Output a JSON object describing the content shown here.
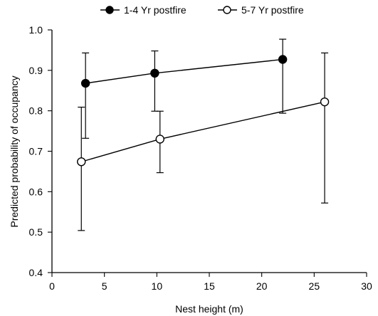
{
  "chart_data": {
    "type": "line",
    "title": "",
    "xlabel": "Nest height (m)",
    "ylabel": "Predicted probability of occupancy",
    "xlim": [
      0,
      30
    ],
    "ylim": [
      0.4,
      1.0
    ],
    "x_ticks": [
      0,
      5,
      10,
      15,
      20,
      25,
      30
    ],
    "y_ticks": [
      0.4,
      0.5,
      0.6,
      0.7,
      0.8,
      0.9,
      1.0
    ],
    "x_tick_labels": [
      "0",
      "5",
      "10",
      "15",
      "20",
      "25",
      "30"
    ],
    "y_tick_labels": [
      "0.4",
      "0.5",
      "0.6",
      "0.7",
      "0.8",
      "0.9",
      "1.0"
    ],
    "grid": false,
    "legend_position": "top-center",
    "series": [
      {
        "name": "1-4 Yr postfire",
        "marker": "filled-circle",
        "color": "#000000",
        "x": [
          3.2,
          9.8,
          22.0
        ],
        "y": [
          0.868,
          0.893,
          0.927
        ],
        "error_lower": [
          0.732,
          0.799,
          0.794
        ],
        "error_upper": [
          0.943,
          0.948,
          0.977
        ]
      },
      {
        "name": "5-7 Yr postfire",
        "marker": "open-circle",
        "color": "#000000",
        "x": [
          2.8,
          10.3,
          26.0
        ],
        "y": [
          0.674,
          0.73,
          0.822
        ],
        "error_lower": [
          0.504,
          0.647,
          0.572
        ],
        "error_upper": [
          0.809,
          0.799,
          0.943
        ]
      }
    ]
  }
}
